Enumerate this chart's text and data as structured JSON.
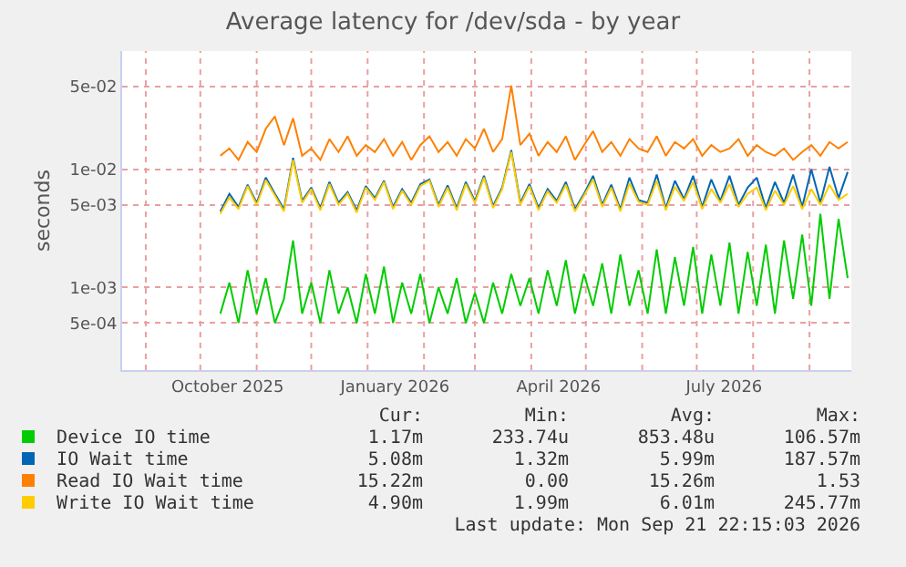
{
  "chart_data": {
    "type": "line",
    "title": "Average latency for /dev/sda - by year",
    "ylabel": "seconds",
    "log": "y",
    "grid": true,
    "legend": "bottom",
    "marker": "none",
    "line_style": "solid",
    "xlim": [
      "2025-08-19",
      "2026-09-24"
    ],
    "xticks": [
      {
        "value": "2025-09-01",
        "label": null
      },
      {
        "value": "2025-10-01",
        "label": null
      },
      {
        "value": "2025-10-16",
        "label": "October 2025"
      },
      {
        "value": "2025-11-01",
        "label": null
      },
      {
        "value": "2025-12-01",
        "label": null
      },
      {
        "value": "2026-01-01",
        "label": null
      },
      {
        "value": "2026-01-16",
        "label": "January 2026"
      },
      {
        "value": "2026-02-01",
        "label": null
      },
      {
        "value": "2026-03-01",
        "label": null
      },
      {
        "value": "2026-04-01",
        "label": null
      },
      {
        "value": "2026-04-16",
        "label": "April 2026"
      },
      {
        "value": "2026-05-01",
        "label": null
      },
      {
        "value": "2026-06-01",
        "label": null
      },
      {
        "value": "2026-07-01",
        "label": null
      },
      {
        "value": "2026-07-16",
        "label": "July 2026"
      },
      {
        "value": "2026-08-01",
        "label": null
      },
      {
        "value": "2026-09-01",
        "label": null
      }
    ],
    "ylim": [
      0.0002,
      0.1
    ],
    "yticks": [
      {
        "value": 0.0005,
        "label": "5e-04"
      },
      {
        "value": 0.001,
        "label": "1e-03"
      },
      {
        "value": 0.005,
        "label": "5e-03"
      },
      {
        "value": 0.01,
        "label": "1e-02"
      },
      {
        "value": 0.05,
        "label": "5e-02"
      }
    ],
    "x": [
      "2025-10-12",
      "2025-10-17",
      "2025-10-22",
      "2025-10-27",
      "2025-11-01",
      "2025-11-06",
      "2025-11-11",
      "2025-11-16",
      "2025-11-21",
      "2025-11-26",
      "2025-12-01",
      "2025-12-06",
      "2025-12-11",
      "2025-12-16",
      "2025-12-21",
      "2025-12-26",
      "2025-12-31",
      "2026-01-05",
      "2026-01-10",
      "2026-01-15",
      "2026-01-20",
      "2026-01-25",
      "2026-01-30",
      "2026-02-04",
      "2026-02-09",
      "2026-02-14",
      "2026-02-19",
      "2026-02-24",
      "2026-03-01",
      "2026-03-06",
      "2026-03-11",
      "2026-03-16",
      "2026-03-21",
      "2026-03-26",
      "2026-03-31",
      "2026-04-05",
      "2026-04-10",
      "2026-04-15",
      "2026-04-20",
      "2026-04-25",
      "2026-04-30",
      "2026-05-05",
      "2026-05-10",
      "2026-05-15",
      "2026-05-20",
      "2026-05-25",
      "2026-05-30",
      "2026-06-04",
      "2026-06-09",
      "2026-06-14",
      "2026-06-19",
      "2026-06-24",
      "2026-06-29",
      "2026-07-04",
      "2026-07-09",
      "2026-07-14",
      "2026-07-19",
      "2026-07-24",
      "2026-07-29",
      "2026-08-03",
      "2026-08-08",
      "2026-08-13",
      "2026-08-18",
      "2026-08-23",
      "2026-08-28",
      "2026-09-02",
      "2026-09-07",
      "2026-09-12",
      "2026-09-17",
      "2026-09-22"
    ],
    "series": [
      {
        "name": "Device IO time",
        "color": "#00cc00",
        "values": [
          0.0006,
          0.0011,
          0.0005,
          0.0014,
          0.0006,
          0.0012,
          0.0005,
          0.0008,
          0.0025,
          0.0006,
          0.0011,
          0.0005,
          0.0014,
          0.0006,
          0.001,
          0.0005,
          0.0013,
          0.0006,
          0.0015,
          0.0005,
          0.0011,
          0.0006,
          0.0013,
          0.0005,
          0.001,
          0.0006,
          0.0012,
          0.0005,
          0.0009,
          0.0005,
          0.0011,
          0.0006,
          0.0013,
          0.0007,
          0.0012,
          0.0006,
          0.0014,
          0.0007,
          0.0017,
          0.0006,
          0.0013,
          0.0007,
          0.0016,
          0.0006,
          0.0019,
          0.0007,
          0.0014,
          0.0006,
          0.0021,
          0.0006,
          0.0018,
          0.0007,
          0.0022,
          0.0006,
          0.0019,
          0.0007,
          0.0024,
          0.0006,
          0.002,
          0.0007,
          0.0023,
          0.0006,
          0.0025,
          0.0008,
          0.0028,
          0.0007,
          0.0042,
          0.0008,
          0.0038,
          0.0012
        ]
      },
      {
        "name": "IO Wait time",
        "color": "#0066b3",
        "values": [
          0.0044,
          0.0062,
          0.0048,
          0.0074,
          0.0052,
          0.0085,
          0.0062,
          0.0046,
          0.0125,
          0.0054,
          0.007,
          0.0047,
          0.0078,
          0.0052,
          0.0064,
          0.0045,
          0.0072,
          0.0057,
          0.008,
          0.0048,
          0.0068,
          0.0052,
          0.0075,
          0.0082,
          0.005,
          0.0073,
          0.0047,
          0.0078,
          0.0054,
          0.0088,
          0.0049,
          0.007,
          0.0145,
          0.0052,
          0.0075,
          0.0047,
          0.0068,
          0.0054,
          0.0078,
          0.0046,
          0.0062,
          0.0088,
          0.005,
          0.0074,
          0.0046,
          0.0085,
          0.0055,
          0.0052,
          0.009,
          0.0047,
          0.008,
          0.0056,
          0.0088,
          0.0048,
          0.0082,
          0.0054,
          0.0088,
          0.005,
          0.007,
          0.0085,
          0.0047,
          0.0078,
          0.0052,
          0.009,
          0.0048,
          0.01,
          0.0052,
          0.0105,
          0.0057,
          0.0095
        ]
      },
      {
        "name": "Read IO Wait time",
        "color": "#ff8000",
        "values": [
          0.013,
          0.015,
          0.012,
          0.017,
          0.014,
          0.022,
          0.028,
          0.016,
          0.027,
          0.013,
          0.015,
          0.012,
          0.018,
          0.014,
          0.019,
          0.013,
          0.016,
          0.014,
          0.018,
          0.013,
          0.017,
          0.012,
          0.016,
          0.019,
          0.014,
          0.017,
          0.013,
          0.018,
          0.015,
          0.022,
          0.014,
          0.018,
          0.051,
          0.016,
          0.02,
          0.013,
          0.017,
          0.014,
          0.019,
          0.012,
          0.016,
          0.021,
          0.014,
          0.017,
          0.013,
          0.018,
          0.015,
          0.014,
          0.019,
          0.013,
          0.017,
          0.015,
          0.018,
          0.013,
          0.016,
          0.014,
          0.015,
          0.018,
          0.013,
          0.016,
          0.014,
          0.013,
          0.015,
          0.012,
          0.014,
          0.016,
          0.013,
          0.017,
          0.015,
          0.017
        ]
      },
      {
        "name": "Write IO Wait time",
        "color": "#ffcc00",
        "values": [
          0.0042,
          0.0058,
          0.0046,
          0.0072,
          0.005,
          0.0081,
          0.006,
          0.0044,
          0.012,
          0.0052,
          0.0068,
          0.0045,
          0.0075,
          0.005,
          0.0062,
          0.0043,
          0.007,
          0.0055,
          0.0078,
          0.0046,
          0.0066,
          0.005,
          0.0072,
          0.008,
          0.0048,
          0.007,
          0.0045,
          0.0075,
          0.0052,
          0.0085,
          0.0047,
          0.0068,
          0.014,
          0.005,
          0.0072,
          0.0045,
          0.0065,
          0.0052,
          0.0074,
          0.0044,
          0.006,
          0.0082,
          0.0048,
          0.007,
          0.0044,
          0.0076,
          0.0053,
          0.005,
          0.008,
          0.0045,
          0.0071,
          0.0054,
          0.0078,
          0.0046,
          0.0068,
          0.0052,
          0.0075,
          0.0048,
          0.0062,
          0.007,
          0.0045,
          0.0066,
          0.005,
          0.0072,
          0.0046,
          0.0068,
          0.005,
          0.0074,
          0.0055,
          0.0062
        ]
      }
    ],
    "annotations": [
      "Cur:",
      "Min:",
      "Avg:",
      "Max:",
      "1.17m",
      "233.74u",
      "853.48u",
      "106.57m",
      "5.08m",
      "1.32m",
      "5.99m",
      "187.57m",
      "15.22m",
      "0.00",
      "15.26m",
      "1.53",
      "4.90m",
      "1.99m",
      "6.01m",
      "245.77m",
      "Last update: Mon Sep 21 22:15:03 2026"
    ]
  }
}
